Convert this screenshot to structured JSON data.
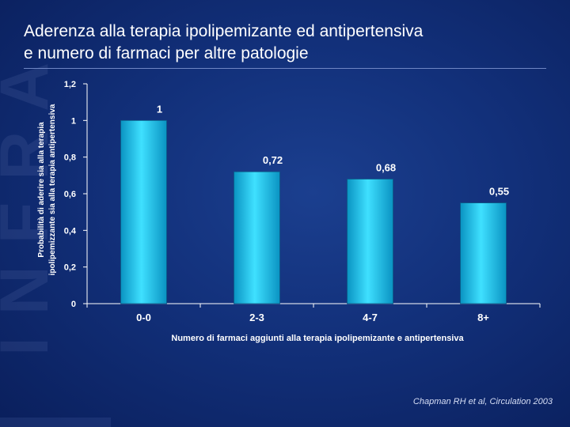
{
  "slide": {
    "title_line1": "Aderenza alla terapia ipolipemizante ed antipertensiva",
    "title_line2": "e numero di farmaci per altre patologie",
    "citation": "Chapman RH et al, Circulation 2003"
  },
  "colors": {
    "bar_light": "#3fe0ff",
    "bar_dark": "#0a93c2",
    "axis": "#ffffff"
  },
  "chart_data": {
    "type": "bar",
    "categories": [
      "0-0",
      "2-3",
      "4-7",
      "8+"
    ],
    "values": [
      1,
      0.72,
      0.68,
      0.55
    ],
    "value_labels": [
      "1",
      "0,72",
      "0,68",
      "0,55"
    ],
    "xlabel": "Numero di farmaci aggiunti alla terapia ipolipemizante e antipertensiva",
    "ylabel_line1": "Probabilità di aderire sia alla terapia",
    "ylabel_line2": "ipolipemizzante sia alla terapia antipertensiva",
    "ylim": [
      0,
      1.2
    ],
    "yticks": [
      0,
      0.2,
      0.4,
      0.6,
      0.8,
      1,
      1.2
    ],
    "ytick_labels": [
      "0",
      "0,2",
      "0,4",
      "0,6",
      "0,8",
      "1",
      "1,2"
    ],
    "grid": false,
    "legend": false
  }
}
